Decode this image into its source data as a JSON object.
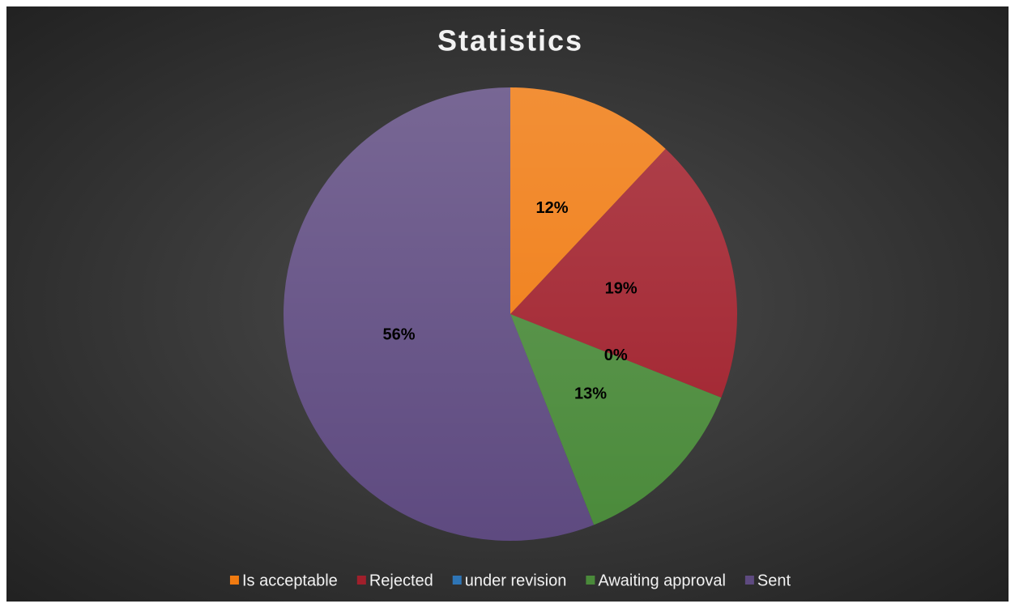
{
  "chart_data": {
    "type": "pie",
    "title": "Statistics",
    "categories": [
      "Is acceptable",
      "Rejected",
      "under revision",
      "Awaiting approval",
      "Sent"
    ],
    "values": [
      12,
      19,
      0,
      13,
      56
    ],
    "value_labels": [
      "12%",
      "19%",
      "0%",
      "13%",
      "56%"
    ],
    "colors": [
      "#f07a10",
      "#a01f2b",
      "#2e75b6",
      "#4a8a3a",
      "#5e4a80"
    ],
    "legend": "bottom"
  }
}
